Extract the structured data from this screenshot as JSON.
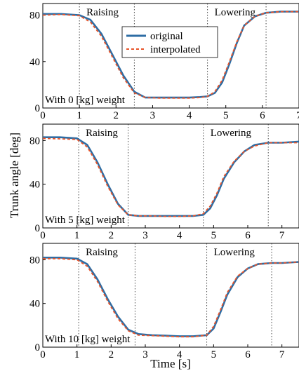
{
  "figure": {
    "ylabel": "Trunk angle [deg]",
    "xlabel": "Time [s]"
  },
  "legend": {
    "entries": [
      {
        "name": "original",
        "color": "#2e6da4",
        "style": "solid"
      },
      {
        "name": "interpolated",
        "color": "#e8552b",
        "style": "dashed"
      }
    ],
    "placement": "top-center of first panel"
  },
  "chart_data": [
    {
      "type": "line",
      "annotation": "With 0 [kg] weight",
      "phase_labels": [
        "Raising",
        "Lowering"
      ],
      "phase_boundaries": [
        1.0,
        2.5,
        4.5,
        6.1
      ],
      "xlim": [
        0,
        7
      ],
      "ylim": [
        0,
        90
      ],
      "xticks": [
        0,
        1,
        2,
        3,
        4,
        5,
        6,
        7
      ],
      "yticks": [
        0,
        40,
        80
      ],
      "grid": false,
      "series": [
        {
          "name": "original",
          "x": [
            0,
            0.5,
            1.0,
            1.3,
            1.6,
            1.9,
            2.2,
            2.5,
            2.8,
            3.2,
            3.6,
            4.0,
            4.3,
            4.5,
            4.7,
            4.9,
            5.1,
            5.3,
            5.5,
            5.8,
            6.1,
            6.5,
            7.0
          ],
          "y": [
            81,
            81,
            80,
            76,
            64,
            46,
            28,
            14,
            9,
            9,
            9,
            9,
            9.5,
            10,
            13,
            22,
            38,
            56,
            71,
            79,
            82,
            83,
            83
          ]
        },
        {
          "name": "interpolated",
          "x": [
            0,
            0.5,
            1.0,
            1.3,
            1.6,
            1.9,
            2.2,
            2.5,
            2.8,
            3.2,
            3.6,
            4.0,
            4.3,
            4.5,
            4.7,
            4.9,
            5.1,
            5.3,
            5.5,
            5.8,
            6.1,
            6.5,
            7.0
          ],
          "y": [
            80,
            80.5,
            79.5,
            74,
            62,
            44,
            26,
            13,
            9,
            8.5,
            8.5,
            8.5,
            9,
            10,
            14,
            24,
            40,
            57,
            71,
            79,
            82,
            83,
            83
          ]
        }
      ]
    },
    {
      "type": "line",
      "annotation": "With 5 [kg] weight",
      "phase_labels": [
        "Raising",
        "Lowering"
      ],
      "phase_boundaries": [
        1.05,
        2.5,
        4.7,
        6.6
      ],
      "xlim": [
        0,
        7.5
      ],
      "ylim": [
        0,
        95
      ],
      "xticks": [
        0,
        1,
        2,
        3,
        4,
        5,
        6,
        7
      ],
      "yticks": [
        0,
        40,
        80
      ],
      "grid": false,
      "series": [
        {
          "name": "original",
          "x": [
            0,
            0.5,
            1.0,
            1.3,
            1.6,
            1.9,
            2.2,
            2.5,
            2.8,
            3.2,
            3.6,
            4.0,
            4.4,
            4.7,
            4.9,
            5.1,
            5.3,
            5.6,
            5.9,
            6.2,
            6.6,
            7.0,
            7.5
          ],
          "y": [
            83,
            83,
            82,
            76,
            60,
            40,
            22,
            12,
            11,
            11,
            11,
            11,
            11,
            12,
            18,
            30,
            45,
            60,
            70,
            76,
            78,
            78,
            79
          ]
        },
        {
          "name": "interpolated",
          "x": [
            0,
            0.5,
            1.0,
            1.3,
            1.6,
            1.9,
            2.2,
            2.5,
            2.8,
            3.2,
            3.6,
            4.0,
            4.4,
            4.7,
            4.9,
            5.1,
            5.3,
            5.6,
            5.9,
            6.2,
            6.6,
            7.0,
            7.5
          ],
          "y": [
            82,
            81.5,
            81,
            74,
            58,
            38,
            21,
            12,
            11,
            11,
            10.5,
            10.5,
            11,
            13,
            20,
            32,
            47,
            61,
            70,
            75,
            78,
            78,
            78
          ]
        }
      ]
    },
    {
      "type": "line",
      "annotation": "With 10 [kg] weight",
      "phase_labels": [
        "Raising",
        "Lowering"
      ],
      "phase_boundaries": [
        1.05,
        2.7,
        4.8,
        6.7
      ],
      "xlim": [
        0,
        7.5
      ],
      "ylim": [
        0,
        95
      ],
      "xticks": [
        0,
        1,
        2,
        3,
        4,
        5,
        6,
        7
      ],
      "yticks": [
        0,
        40,
        80
      ],
      "grid": false,
      "series": [
        {
          "name": "original",
          "x": [
            0,
            0.5,
            1.0,
            1.3,
            1.6,
            1.9,
            2.2,
            2.5,
            2.8,
            3.2,
            3.6,
            4.0,
            4.4,
            4.8,
            5.0,
            5.2,
            5.4,
            5.7,
            6.0,
            6.3,
            6.7,
            7.0,
            7.5
          ],
          "y": [
            82,
            82,
            81,
            76,
            62,
            44,
            28,
            16,
            12,
            11,
            10.5,
            10,
            10,
            11,
            17,
            32,
            48,
            64,
            72,
            76,
            77,
            77,
            78
          ]
        },
        {
          "name": "interpolated",
          "x": [
            0,
            0.5,
            1.0,
            1.3,
            1.6,
            1.9,
            2.2,
            2.5,
            2.8,
            3.2,
            3.6,
            4.0,
            4.4,
            4.8,
            5.0,
            5.2,
            5.4,
            5.7,
            6.0,
            6.3,
            6.7,
            7.0,
            7.5
          ],
          "y": [
            81,
            81,
            80,
            74,
            60,
            42,
            26,
            15,
            11,
            10.5,
            10,
            9.5,
            9.5,
            11,
            19,
            34,
            50,
            65,
            72,
            76,
            77,
            77,
            78
          ]
        }
      ]
    }
  ]
}
